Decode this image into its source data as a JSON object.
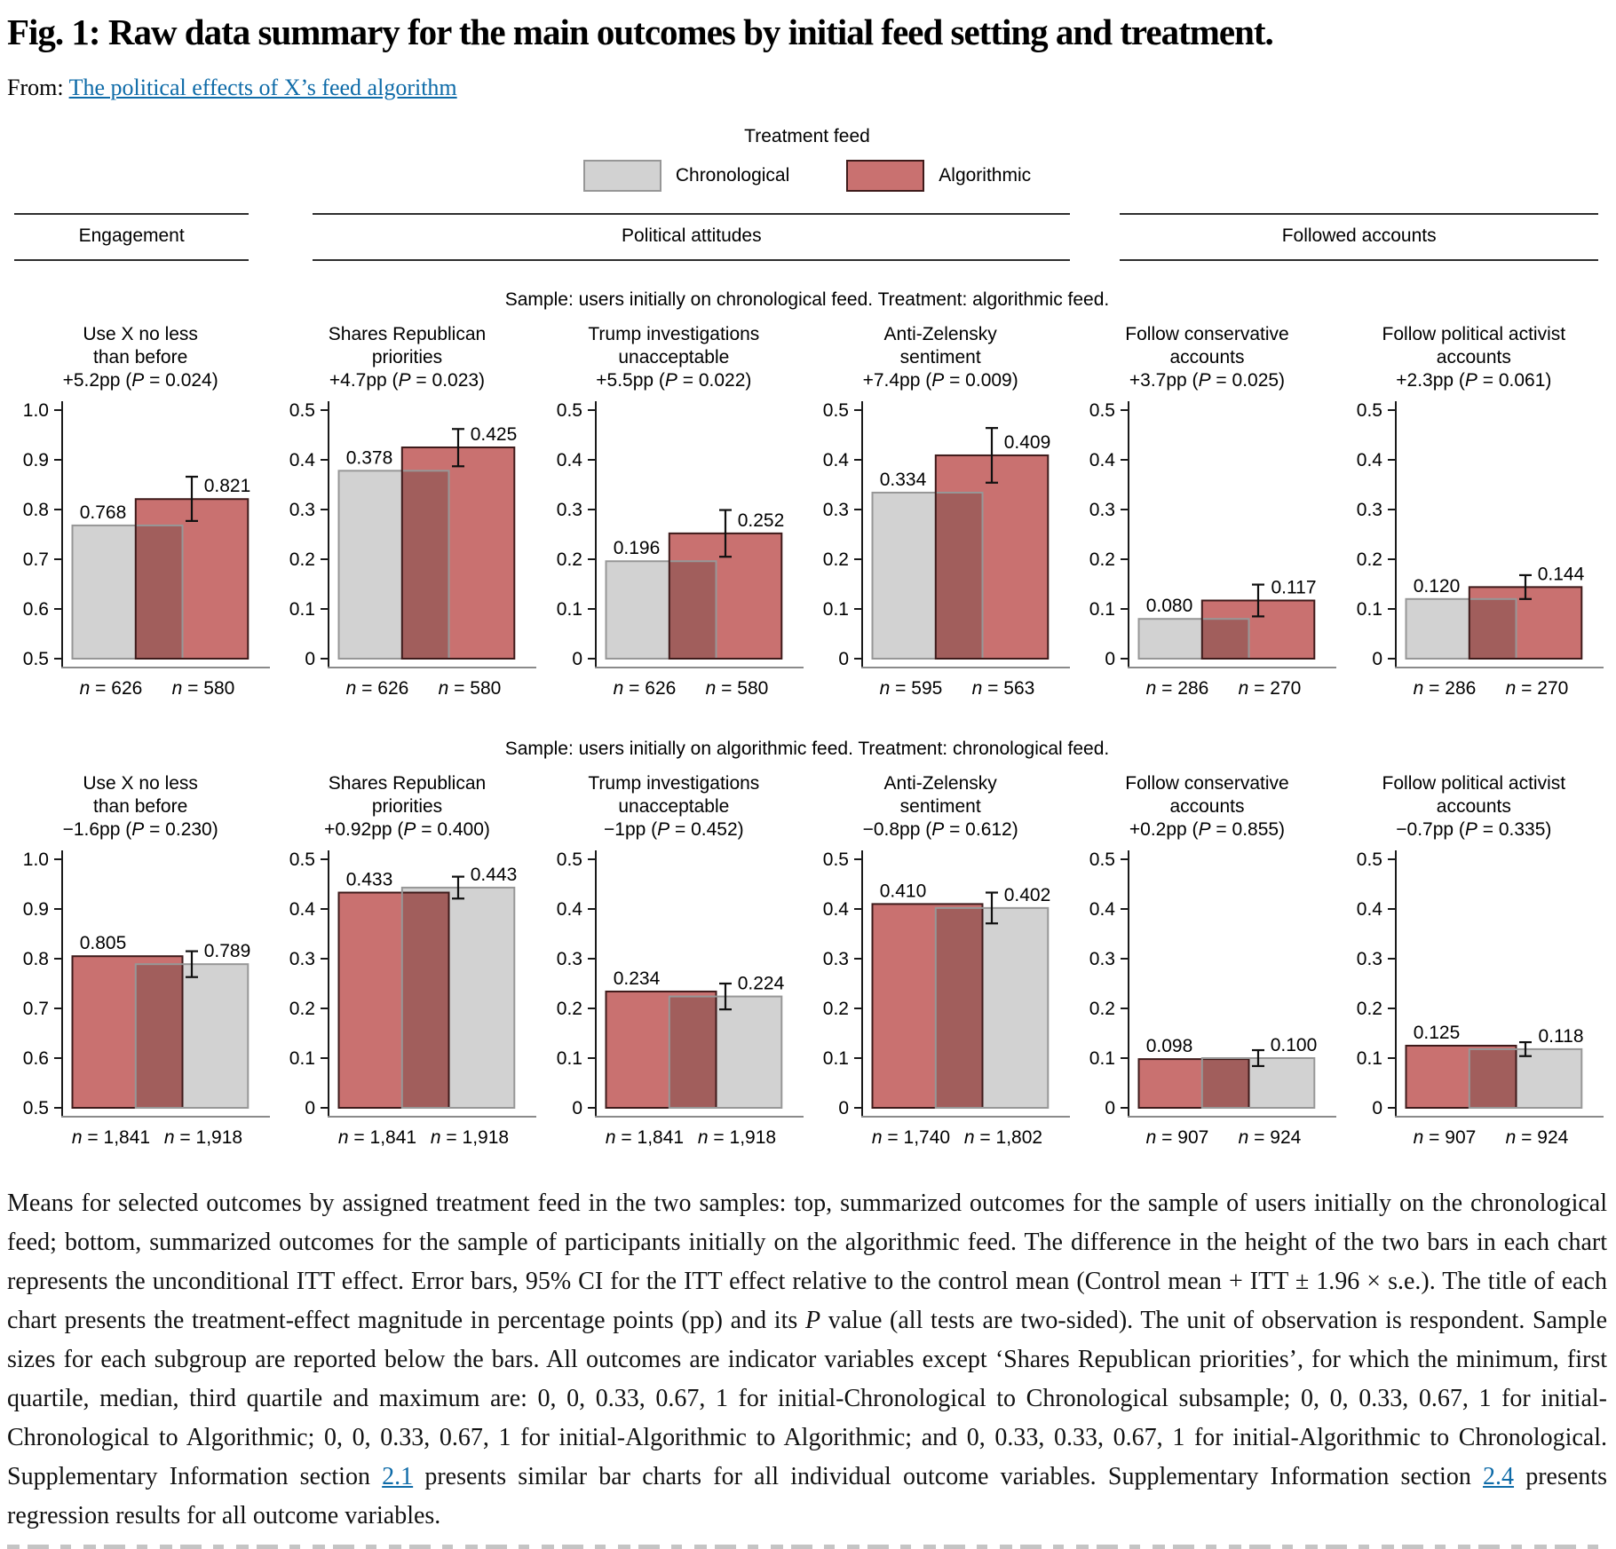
{
  "page": {
    "title": "Fig. 1: Raw data summary for the main outcomes by initial feed setting and treatment.",
    "from_label": "From:",
    "from_link": "The political effects of X’s feed algorithm",
    "link_color": "#0e6ba8"
  },
  "chart_data": {
    "type": "bar",
    "legend": {
      "title": "Treatment feed",
      "items": [
        {
          "label": "Chronological",
          "fill": "#d2d2d2",
          "stroke": "#979797"
        },
        {
          "label": "Algorithmic",
          "fill": "#c97170",
          "stroke": "#3e1b1b"
        }
      ]
    },
    "overlap_fill": "#a15e5c",
    "section_headers": [
      "Engagement",
      "Political attitudes",
      "Followed accounts"
    ],
    "rows": [
      {
        "sample_label": "Sample: users initially on chronological feed. Treatment: algorithmic feed.",
        "control_series": "Chronological",
        "control_index": 0,
        "treatment_series": "Algorithmic",
        "treatment_index": 1,
        "charts": [
          {
            "title1": "Use X no less",
            "title2": "than before",
            "effect": "+5.2pp (P = 0.024)",
            "ymin": 0.5,
            "ymax": 1.0,
            "tick_labels": [
              "1.0",
              "0.9",
              "0.8",
              "0.7",
              "0.6",
              "0.5"
            ],
            "control_value": 0.768,
            "control_label": "0.768",
            "control_n": "n = 626",
            "treatment_value": 0.821,
            "treatment_label": "0.821",
            "treatment_n": "n = 580",
            "ci_low": 0.777,
            "ci_high": 0.866
          },
          {
            "title1": "Shares Republican",
            "title2": "priorities",
            "effect": "+4.7pp (P = 0.023)",
            "ymin": 0,
            "ymax": 0.5,
            "tick_labels": [
              "0.5",
              "0.4",
              "0.3",
              "0.2",
              "0.1",
              "0"
            ],
            "control_value": 0.378,
            "control_label": "0.378",
            "control_n": "n = 626",
            "treatment_value": 0.425,
            "treatment_label": "0.425",
            "treatment_n": "n = 580",
            "ci_low": 0.387,
            "ci_high": 0.462
          },
          {
            "title1": "Trump investigations",
            "title2": "unacceptable",
            "effect": "+5.5pp (P = 0.022)",
            "ymin": 0,
            "ymax": 0.5,
            "tick_labels": [
              "0.5",
              "0.4",
              "0.3",
              "0.2",
              "0.1",
              "0"
            ],
            "control_value": 0.196,
            "control_label": "0.196",
            "control_n": "n = 626",
            "treatment_value": 0.252,
            "treatment_label": "0.252",
            "treatment_n": "n = 580",
            "ci_low": 0.205,
            "ci_high": 0.299
          },
          {
            "title1": "Anti-Zelensky",
            "title2": "sentiment",
            "effect": "+7.4pp (P = 0.009)",
            "ymin": 0,
            "ymax": 0.5,
            "tick_labels": [
              "0.5",
              "0.4",
              "0.3",
              "0.2",
              "0.1",
              "0"
            ],
            "control_value": 0.334,
            "control_label": "0.334",
            "control_n": "n = 595",
            "treatment_value": 0.409,
            "treatment_label": "0.409",
            "treatment_n": "n = 563",
            "ci_low": 0.354,
            "ci_high": 0.464
          },
          {
            "title1": "Follow conservative",
            "title2": "accounts",
            "effect": "+3.7pp (P = 0.025)",
            "ymin": 0,
            "ymax": 0.5,
            "tick_labels": [
              "0.5",
              "0.4",
              "0.3",
              "0.2",
              "0.1",
              "0"
            ],
            "control_value": 0.08,
            "control_label": "0.080",
            "control_n": "n = 286",
            "treatment_value": 0.117,
            "treatment_label": "0.117",
            "treatment_n": "n = 270",
            "ci_low": 0.085,
            "ci_high": 0.149
          },
          {
            "title1": "Follow political activist",
            "title2": "accounts",
            "effect": "+2.3pp (P = 0.061)",
            "ymin": 0,
            "ymax": 0.5,
            "tick_labels": [
              "0.5",
              "0.4",
              "0.3",
              "0.2",
              "0.1",
              "0"
            ],
            "control_value": 0.12,
            "control_label": "0.120",
            "control_n": "n = 286",
            "treatment_value": 0.144,
            "treatment_label": "0.144",
            "treatment_n": "n = 270",
            "ci_low": 0.12,
            "ci_high": 0.168
          }
        ]
      },
      {
        "sample_label": "Sample: users initially on algorithmic feed. Treatment: chronological feed.",
        "control_series": "Algorithmic",
        "control_index": 1,
        "treatment_series": "Chronological",
        "treatment_index": 0,
        "charts": [
          {
            "title1": "Use X no less",
            "title2": "than before",
            "effect": "−1.6pp (P = 0.230)",
            "ymin": 0.5,
            "ymax": 1.0,
            "tick_labels": [
              "1.0",
              "0.9",
              "0.8",
              "0.7",
              "0.6",
              "0.5"
            ],
            "control_value": 0.805,
            "control_label": "0.805",
            "control_n": "n = 1,841",
            "treatment_value": 0.789,
            "treatment_label": "0.789",
            "treatment_n": "n = 1,918",
            "ci_low": 0.763,
            "ci_high": 0.815
          },
          {
            "title1": "Shares Republican",
            "title2": "priorities",
            "effect": "+0.92pp (P = 0.400)",
            "ymin": 0,
            "ymax": 0.5,
            "tick_labels": [
              "0.5",
              "0.4",
              "0.3",
              "0.2",
              "0.1",
              "0"
            ],
            "control_value": 0.433,
            "control_label": "0.433",
            "control_n": "n = 1,841",
            "treatment_value": 0.443,
            "treatment_label": "0.443",
            "treatment_n": "n = 1,918",
            "ci_low": 0.421,
            "ci_high": 0.465
          },
          {
            "title1": "Trump investigations",
            "title2": "unacceptable",
            "effect": "−1pp (P = 0.452)",
            "ymin": 0,
            "ymax": 0.5,
            "tick_labels": [
              "0.5",
              "0.4",
              "0.3",
              "0.2",
              "0.1",
              "0"
            ],
            "control_value": 0.234,
            "control_label": "0.234",
            "control_n": "n = 1,841",
            "treatment_value": 0.224,
            "treatment_label": "0.224",
            "treatment_n": "n = 1,918",
            "ci_low": 0.198,
            "ci_high": 0.25
          },
          {
            "title1": "Anti-Zelensky",
            "title2": "sentiment",
            "effect": "−0.8pp (P = 0.612)",
            "ymin": 0,
            "ymax": 0.5,
            "tick_labels": [
              "0.5",
              "0.4",
              "0.3",
              "0.2",
              "0.1",
              "0"
            ],
            "control_value": 0.41,
            "control_label": "0.410",
            "control_n": "n = 1,740",
            "treatment_value": 0.402,
            "treatment_label": "0.402",
            "treatment_n": "n = 1,802",
            "ci_low": 0.371,
            "ci_high": 0.433
          },
          {
            "title1": "Follow conservative",
            "title2": "accounts",
            "effect": "+0.2pp (P = 0.855)",
            "ymin": 0,
            "ymax": 0.5,
            "tick_labels": [
              "0.5",
              "0.4",
              "0.3",
              "0.2",
              "0.1",
              "0"
            ],
            "control_value": 0.098,
            "control_label": "0.098",
            "control_n": "n = 907",
            "treatment_value": 0.1,
            "treatment_label": "0.100",
            "treatment_n": "n = 924",
            "ci_low": 0.084,
            "ci_high": 0.116
          },
          {
            "title1": "Follow political activist",
            "title2": "accounts",
            "effect": "−0.7pp (P = 0.335)",
            "ymin": 0,
            "ymax": 0.5,
            "tick_labels": [
              "0.5",
              "0.4",
              "0.3",
              "0.2",
              "0.1",
              "0"
            ],
            "control_value": 0.125,
            "control_label": "0.125",
            "control_n": "n = 907",
            "treatment_value": 0.118,
            "treatment_label": "0.118",
            "treatment_n": "n = 924",
            "ci_low": 0.104,
            "ci_high": 0.132
          }
        ]
      }
    ]
  },
  "caption": {
    "seg1": "Means for selected outcomes by assigned treatment feed in the two samples: top, summarized outcomes for the sample of users initially on the chronological feed; bottom, summarized outcomes for the sample of participants initially on the algorithmic feed. The difference in the height of the two bars in each chart represents the unconditional ITT effect. Error bars, 95% CI for the ITT effect relative to the control mean (Control mean + ITT ± 1.96 × s.e.). The title of each chart presents the treatment-effect magnitude in percentage points (pp) and its ",
    "p": "P",
    "seg2": " value (all tests are two-sided). The unit of observation is respondent. Sample sizes for each subgroup are reported below the bars. All outcomes are indicator variables except ‘Shares Republican priorities’, for which the minimum, first quartile, median, third quartile and maximum are: 0, 0, 0.33, 0.67, 1 for initial-Chronological to Chronological subsample; 0, 0, 0.33, 0.67, 1 for initial-Chronological to Algorithmic; 0, 0, 0.33, 0.67, 1 for initial-Algorithmic to Algorithmic; and 0, 0.33, 0.33, 0.67, 1 for initial-Algorithmic to Chronological. Supplementary Information section ",
    "link1": "2.1",
    "seg3": " presents similar bar charts for all individual outcome variables. Supplementary Information section ",
    "link2": "2.4",
    "seg4": " presents regression results for all outcome variables."
  }
}
